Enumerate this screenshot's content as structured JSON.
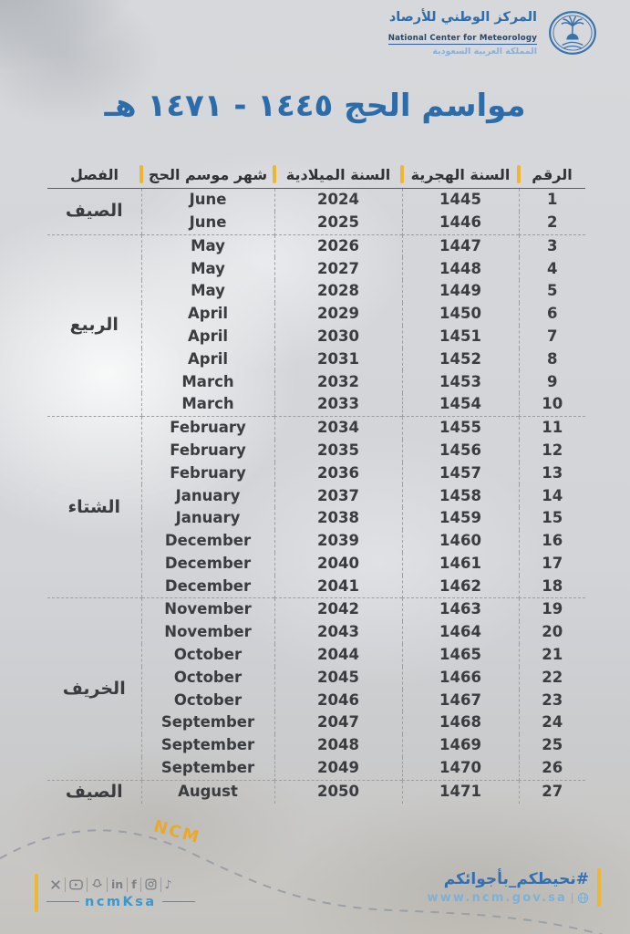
{
  "brand": {
    "org_name_ar": "المركز الوطني للأرصاد",
    "org_name_en": "National Center for Meteorology",
    "org_country_ar": "المملكة العربية السعودية"
  },
  "title": "مواسم الحج ١٤٤٥ - ١٤٧١ هـ",
  "table": {
    "columns": [
      "الرقم",
      "السنة الهجرية",
      "السنة الميلادية",
      "شهر موسم الحج",
      "الفصل"
    ],
    "rows": [
      {
        "no": "1",
        "hijri": "1445",
        "gregorian": "2024",
        "month": "June"
      },
      {
        "no": "2",
        "hijri": "1446",
        "gregorian": "2025",
        "month": "June"
      },
      {
        "no": "3",
        "hijri": "1447",
        "gregorian": "2026",
        "month": "May"
      },
      {
        "no": "4",
        "hijri": "1448",
        "gregorian": "2027",
        "month": "May"
      },
      {
        "no": "5",
        "hijri": "1449",
        "gregorian": "2028",
        "month": "May"
      },
      {
        "no": "6",
        "hijri": "1450",
        "gregorian": "2029",
        "month": "April"
      },
      {
        "no": "7",
        "hijri": "1451",
        "gregorian": "2030",
        "month": "April"
      },
      {
        "no": "8",
        "hijri": "1452",
        "gregorian": "2031",
        "month": "April"
      },
      {
        "no": "9",
        "hijri": "1453",
        "gregorian": "2032",
        "month": "March"
      },
      {
        "no": "10",
        "hijri": "1454",
        "gregorian": "2033",
        "month": "March"
      },
      {
        "no": "11",
        "hijri": "1455",
        "gregorian": "2034",
        "month": "February"
      },
      {
        "no": "12",
        "hijri": "1456",
        "gregorian": "2035",
        "month": "February"
      },
      {
        "no": "13",
        "hijri": "1457",
        "gregorian": "2036",
        "month": "February"
      },
      {
        "no": "14",
        "hijri": "1458",
        "gregorian": "2037",
        "month": "January"
      },
      {
        "no": "15",
        "hijri": "1459",
        "gregorian": "2038",
        "month": "January"
      },
      {
        "no": "16",
        "hijri": "1460",
        "gregorian": "2039",
        "month": "December"
      },
      {
        "no": "17",
        "hijri": "1461",
        "gregorian": "2040",
        "month": "December"
      },
      {
        "no": "18",
        "hijri": "1462",
        "gregorian": "2041",
        "month": "December"
      },
      {
        "no": "19",
        "hijri": "1463",
        "gregorian": "2042",
        "month": "November"
      },
      {
        "no": "20",
        "hijri": "1464",
        "gregorian": "2043",
        "month": "November"
      },
      {
        "no": "21",
        "hijri": "1465",
        "gregorian": "2044",
        "month": "October"
      },
      {
        "no": "22",
        "hijri": "1466",
        "gregorian": "2045",
        "month": "October"
      },
      {
        "no": "23",
        "hijri": "1467",
        "gregorian": "2046",
        "month": "October"
      },
      {
        "no": "24",
        "hijri": "1468",
        "gregorian": "2047",
        "month": "September"
      },
      {
        "no": "25",
        "hijri": "1469",
        "gregorian": "2048",
        "month": "September"
      },
      {
        "no": "26",
        "hijri": "1470",
        "gregorian": "2049",
        "month": "September"
      },
      {
        "no": "27",
        "hijri": "1471",
        "gregorian": "2050",
        "month": "August"
      }
    ],
    "season_groups": [
      {
        "season": "الصيف",
        "from": 1,
        "to": 2
      },
      {
        "season": "الربيع",
        "from": 3,
        "to": 10
      },
      {
        "season": "الشتاء",
        "from": 11,
        "to": 18
      },
      {
        "season": "الخريف",
        "from": 19,
        "to": 26
      },
      {
        "season": "الصيف",
        "from": 27,
        "to": 27
      }
    ]
  },
  "footer": {
    "watermark": "NCM",
    "social_icons": [
      "x-icon",
      "youtube-icon",
      "snapchat-icon",
      "linkedin-icon",
      "facebook-icon",
      "instagram-icon",
      "tiktok-icon"
    ],
    "social_handle": "ncmKsa",
    "hashtag": "#نحيطكم_بأجوائكم",
    "website": "www.ncm.gov.sa"
  },
  "colors": {
    "accent_blue": "#2d6cab",
    "accent_yellow": "#edb733",
    "text_dark": "#3a3c40",
    "handle_blue": "#3e96cc",
    "website_blue": "#7cb0da",
    "dash_gray": "#9b9ea3"
  }
}
